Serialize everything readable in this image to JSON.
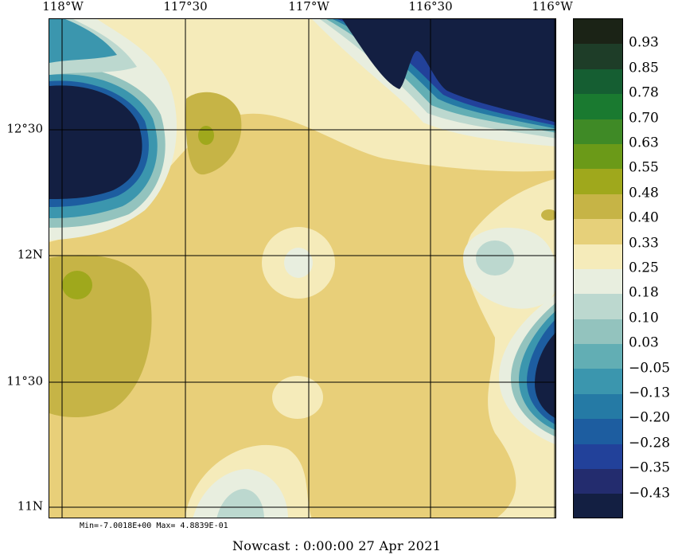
{
  "map": {
    "lon_labels": [
      "118°W",
      "117°30",
      "117°W",
      "116°30",
      "116°W"
    ],
    "lat_labels": [
      "12°30",
      "12N",
      "11°30",
      "11N"
    ]
  },
  "colorbar": {
    "colors": [
      "#1b2316",
      "#1e3d28",
      "#155e32",
      "#1a7a30",
      "#3f8a26",
      "#6b9a18",
      "#9fa81c",
      "#c6b446",
      "#e6d07a",
      "#f5ebba",
      "#e8eedf",
      "#bcd8cf",
      "#93c3be",
      "#62aeb4",
      "#3b96ae",
      "#257aa5",
      "#1d5da0",
      "#22419a",
      "#232c6e",
      "#131f42"
    ],
    "labels": [
      "0.93",
      "0.85",
      "0.78",
      "0.70",
      "0.63",
      "0.55",
      "0.48",
      "0.40",
      "0.33",
      "0.25",
      "0.18",
      "0.10",
      "0.03",
      "−0.05",
      "−0.13",
      "−0.20",
      "−0.28",
      "−0.35",
      "−0.43"
    ]
  },
  "stats": {
    "text": "Min=-7.0018E+00  Max= 4.8839E-01"
  },
  "caption": {
    "text": "Nowcast :  0:00:00  27 Apr 2021"
  }
}
